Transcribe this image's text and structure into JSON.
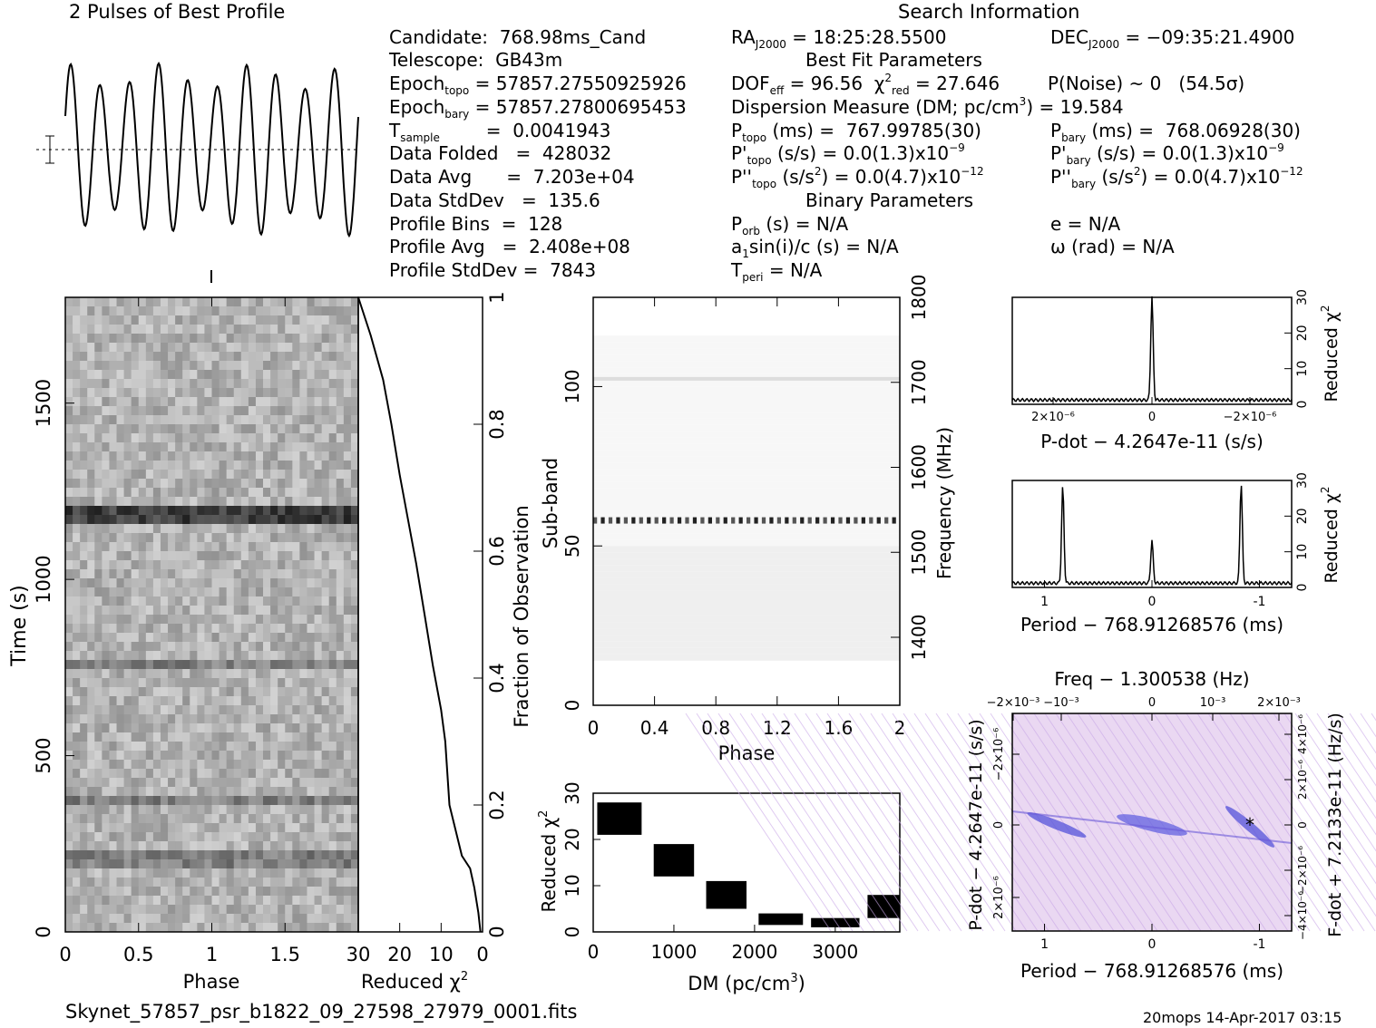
{
  "header": {
    "profile_title": "2 Pulses of Best Profile",
    "search_title": "Search Information",
    "best_fit_title": "Best Fit Parameters",
    "binary_title": "Binary Parameters"
  },
  "info_left": [
    [
      "Candidate:  768.98ms_Cand"
    ],
    [
      "Telescope:  GB43m"
    ],
    [
      "Epoch",
      "topo",
      " = 57857.27550925926"
    ],
    [
      "Epoch",
      "bary",
      " = 57857.27800695453"
    ],
    [
      "T",
      "sample",
      "        =  0.0041943"
    ],
    [
      "Data Folded   =  428032"
    ],
    [
      "Data Avg      =  7.203e+04"
    ],
    [
      "Data StdDev   =  135.6"
    ],
    [
      "Profile Bins  =  128"
    ],
    [
      "Profile Avg   =  2.408e+08"
    ],
    [
      "Profile StdDev =  7843"
    ]
  ],
  "info_mid": {
    "ra": "= 18:25:28.5500",
    "dec": "= −09:35:21.4900",
    "dof": "= 96.56",
    "chi2": "= 27.646",
    "pnoise": "P(Noise) ~ 0   (54.5σ)",
    "dm": "Dispersion Measure (DM; pc/cm",
    "dm_val": ") = 19.584",
    "ptopo": "(ms) =  767.99785(30)",
    "pbary": "(ms) =  768.06928(30)",
    "pdot_topo": "(s/s) = 0.0(1.3)x10",
    "pdot_exp": "−9",
    "pddot_topo": "(s/s",
    "pddot_val": ") = 0.0(4.7)x10",
    "pddot_exp": "−12",
    "porb": "(s) = N/A",
    "a1sini": "a",
    "a1sini_rest": "sin(i)/c (s) = N/A",
    "tperi": "= N/A",
    "e": "e = N/A",
    "omega": "ω (rad) = N/A"
  },
  "labels": {
    "time_s": "Time (s)",
    "phase": "Phase",
    "reduced_chi2": "Reduced χ",
    "fraction_obs": "Fraction of Observation",
    "sub_band": "Sub-band",
    "frequency": "Frequency (MHz)",
    "dm_axis": "DM (pc/cm",
    "pdot_axis": "P-dot − 4.2647e-11 (s/s)",
    "period_axis": "Period − 768.91268576 (ms)",
    "freq_axis": "Freq − 1.300538 (Hz)",
    "pdot_left": "P-dot − 4.2647e-11 (s/s)",
    "fdot_right": "F-dot + 7.2133e-11 (Hz/s)"
  },
  "footer": {
    "filename": "Skynet_57857_psr_b1822_09_27598_27979_0001.fits",
    "stamp": "20mops 14-Apr-2017 03:15"
  },
  "colors": {
    "axis": "#000000",
    "pp_blue": "#3b3bd6",
    "pp_bg": "#e8dcf6"
  },
  "chart_data": [
    {
      "type": "line",
      "title": "2 Pulses of Best Profile",
      "note": "profile over phase 0–2",
      "x": [
        0,
        0.1,
        0.2,
        0.3,
        0.4,
        0.5,
        0.6,
        0.7,
        0.8,
        0.9,
        1.0,
        1.1,
        1.2,
        1.3,
        1.4,
        1.5,
        1.6,
        1.7,
        1.8,
        1.9,
        2.0
      ],
      "y": [
        0.5,
        0.9,
        0.1,
        0.95,
        0.05,
        0.9,
        0.1,
        0.95,
        0.05,
        0.9,
        0.5,
        0.9,
        0.1,
        0.95,
        0.05,
        0.9,
        0.1,
        0.95,
        0.05,
        0.9,
        0.5
      ]
    },
    {
      "type": "heatmap",
      "xlabel": "Phase",
      "ylabel": "Time (s)",
      "xlim": [
        0,
        2
      ],
      "ylim": [
        0,
        1800
      ],
      "xticks": [
        0,
        0.5,
        1,
        1.5
      ],
      "yticks": [
        0,
        500,
        1000,
        1500
      ]
    },
    {
      "type": "line",
      "xlabel": "Reduced χ2",
      "ylabel": "Fraction of Observation",
      "xlim": [
        30,
        0
      ],
      "ylim": [
        0,
        1
      ],
      "xticks": [
        30,
        20,
        10,
        0
      ],
      "yticks": [
        0,
        0.2,
        0.4,
        0.6,
        0.8,
        1
      ],
      "x": [
        0.5,
        1,
        2,
        3,
        5,
        8,
        9,
        10,
        12,
        14,
        16,
        18,
        20,
        22,
        24,
        27,
        30
      ],
      "y": [
        0,
        0.03,
        0.07,
        0.1,
        0.12,
        0.2,
        0.3,
        0.35,
        0.42,
        0.5,
        0.58,
        0.65,
        0.72,
        0.8,
        0.87,
        0.94,
        1.0
      ]
    },
    {
      "type": "heatmap",
      "xlabel": "Phase",
      "ylabel": "Sub-band",
      "y2label": "Frequency (MHz)",
      "xlim": [
        0,
        2
      ],
      "ylim": [
        0,
        128
      ],
      "xticks": [
        0,
        0.4,
        0.8,
        1.2,
        1.6,
        2
      ],
      "yticks": [
        0,
        50,
        100
      ],
      "y2ticks": [
        1400,
        1500,
        1600,
        1700,
        1800
      ],
      "bright_bands": [
        58,
        102
      ]
    },
    {
      "type": "line",
      "xlabel": "DM (pc/cm3)",
      "ylabel": "Reduced χ2",
      "xlim": [
        0,
        3800
      ],
      "ylim": [
        0,
        30
      ],
      "xticks": [
        0,
        1000,
        2000,
        3000
      ],
      "yticks": [
        0,
        10,
        20,
        30
      ],
      "blocks": [
        {
          "x0": 50,
          "x1": 600,
          "lo": 21,
          "hi": 28
        },
        {
          "x0": 750,
          "x1": 1250,
          "lo": 12,
          "hi": 19
        },
        {
          "x0": 1400,
          "x1": 1900,
          "lo": 5,
          "hi": 11
        },
        {
          "x0": 2050,
          "x1": 2600,
          "lo": 1.5,
          "hi": 4
        },
        {
          "x0": 2700,
          "x1": 3300,
          "lo": 1,
          "hi": 3
        },
        {
          "x0": 3400,
          "x1": 3800,
          "lo": 3,
          "hi": 8
        }
      ]
    },
    {
      "type": "line",
      "xlabel": "P-dot − 4.2647e-11 (s/s)",
      "ylabel": "Reduced χ2",
      "xlim": [
        3e-06,
        -3e-06
      ],
      "ylim": [
        0,
        30
      ],
      "xtick_labels": [
        "2×10⁻⁶",
        "0",
        "−2×10⁻⁶"
      ],
      "yticks": [
        0,
        10,
        20,
        30
      ],
      "peak": {
        "x": 0,
        "y": 27
      }
    },
    {
      "type": "line",
      "xlabel": "Period − 768.91268576 (ms)",
      "ylabel": "Reduced χ2",
      "xlim": [
        1.3,
        -1.3
      ],
      "ylim": [
        0,
        30
      ],
      "xticks": [
        1,
        0,
        -1
      ],
      "yticks": [
        0,
        10,
        20,
        30
      ],
      "peaks": [
        {
          "x": 0.83,
          "y": 27
        },
        {
          "x": 0,
          "y": 12
        },
        {
          "x": -0.83,
          "y": 28
        }
      ]
    },
    {
      "type": "heatmap",
      "xlabel": "Period − 768.91268576 (ms)",
      "ylabel": "P-dot − 4.2647e-11 (s/s)",
      "x2label": "Freq − 1.300538 (Hz)",
      "y2label": "F-dot + 7.2133e-11 (Hz/s)",
      "xticks": [
        1,
        0,
        -1
      ],
      "x2tick_labels": [
        "−2×10⁻³",
        "−10⁻³",
        "0",
        "10⁻³",
        "2×10⁻³"
      ],
      "ytick_labels": [
        "−2×10⁻⁶",
        "0",
        "2×10⁻⁶"
      ],
      "y2tick_labels": [
        "−4×10⁻⁶",
        "−2×10⁻⁶",
        "0",
        "2×10⁻⁶",
        "4×10⁻⁶"
      ]
    }
  ]
}
